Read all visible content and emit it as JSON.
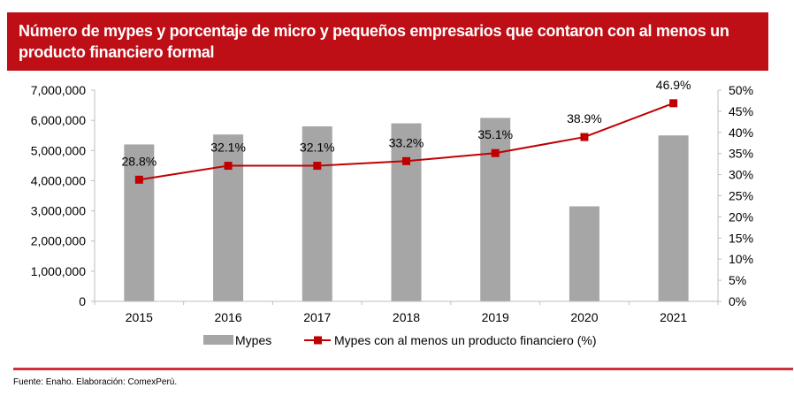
{
  "header": {
    "title": "Número de mypes y porcentaje de micro y pequeños empresarios que contaron con al menos un producto financiero formal"
  },
  "footer": {
    "source": "Fuente: Enaho. Elaboración: ComexPerú."
  },
  "colors": {
    "header_bg": "#BE0F17",
    "bar": "#A6A6A6",
    "line": "#C00000",
    "divider": "#D0303A",
    "axis": "#BFBFBF"
  },
  "chart_data": {
    "type": "bar+line",
    "title": "Número de mypes y porcentaje de micro y pequeños empresarios que contaron con al menos un producto financiero formal",
    "categories": [
      "2015",
      "2016",
      "2017",
      "2018",
      "2019",
      "2020",
      "2021"
    ],
    "series": [
      {
        "name": "Mypes",
        "type": "bar",
        "axis": "left",
        "values": [
          5200000,
          5530000,
          5800000,
          5900000,
          6080000,
          3150000,
          5500000
        ]
      },
      {
        "name": "Mypes con al menos un producto financiero (%)",
        "type": "line",
        "axis": "right",
        "values": [
          28.8,
          32.1,
          32.1,
          33.2,
          35.1,
          38.9,
          46.9
        ],
        "labels": [
          "28.8%",
          "32.1%",
          "32.1%",
          "33.2%",
          "35.1%",
          "38.9%",
          "46.9%"
        ]
      }
    ],
    "y_left": {
      "ylim": [
        0,
        7000000
      ],
      "ticks": [
        0,
        1000000,
        2000000,
        3000000,
        4000000,
        5000000,
        6000000,
        7000000
      ],
      "tick_labels": [
        "0",
        "1,000,000",
        "2,000,000",
        "3,000,000",
        "4,000,000",
        "5,000,000",
        "6,000,000",
        "7,000,000"
      ]
    },
    "y_right": {
      "ylim": [
        0,
        50
      ],
      "ticks": [
        0,
        5,
        10,
        15,
        20,
        25,
        30,
        35,
        40,
        45,
        50
      ],
      "tick_labels": [
        "0%",
        "5%",
        "10%",
        "15%",
        "20%",
        "25%",
        "30%",
        "35%",
        "40%",
        "45%",
        "50%"
      ]
    },
    "xlabel": "",
    "ylabel": "",
    "grid": false,
    "legend": {
      "position": "bottom",
      "entries": [
        "Mypes",
        "Mypes con al menos un producto financiero (%)"
      ]
    }
  }
}
